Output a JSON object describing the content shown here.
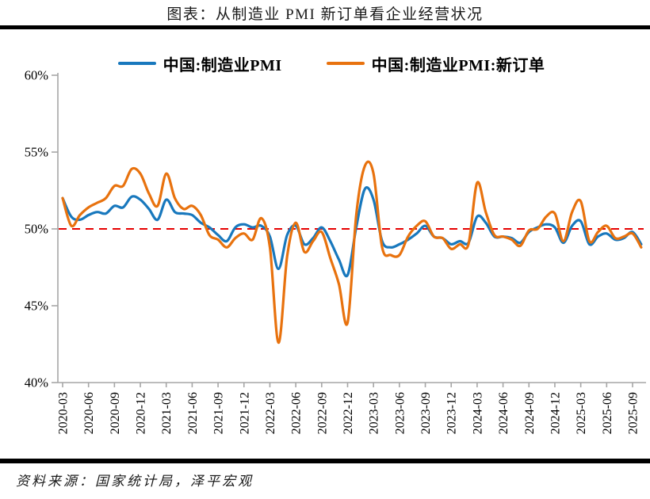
{
  "title": "图表：从制造业 PMI 新订单看企业经营状况",
  "source_note": "资料来源：国家统计局，泽平宏观",
  "legend": [
    {
      "label": "中国:制造业PMI",
      "color": "#1878bd"
    },
    {
      "label": "中国:制造业PMI:新订单",
      "color": "#e8720e"
    }
  ],
  "chart_data": {
    "type": "line",
    "title": "图表：从制造业 PMI 新订单看企业经营状况",
    "xlabel": "",
    "ylabel": "",
    "ylim": [
      40,
      60
    ],
    "grid": false,
    "legend_position": "top",
    "yticks": [
      {
        "value": 60,
        "label": "60%"
      },
      {
        "value": 55,
        "label": "55%"
      },
      {
        "value": 50,
        "label": "50%"
      },
      {
        "value": 45,
        "label": "45%"
      },
      {
        "value": 40,
        "label": "40%"
      }
    ],
    "xticks": [
      "2020-03",
      "2020-06",
      "2020-09",
      "2020-12",
      "2021-03",
      "2021-06",
      "2021-09",
      "2021-12",
      "2022-03",
      "2022-06",
      "2022-09",
      "2022-12",
      "2023-03",
      "2023-06",
      "2023-09",
      "2023-12",
      "2024-03",
      "2024-06",
      "2024-09",
      "2024-12",
      "2025-03",
      "2025-06",
      "2025-09"
    ],
    "reference_line": {
      "value": 50,
      "color": "#e60000",
      "style": "dashed"
    },
    "x": [
      "2020-03",
      "2020-04",
      "2020-05",
      "2020-06",
      "2020-07",
      "2020-08",
      "2020-09",
      "2020-10",
      "2020-11",
      "2020-12",
      "2021-01",
      "2021-02",
      "2021-03",
      "2021-04",
      "2021-05",
      "2021-06",
      "2021-07",
      "2021-08",
      "2021-09",
      "2021-10",
      "2021-11",
      "2021-12",
      "2022-01",
      "2022-02",
      "2022-03",
      "2022-04",
      "2022-05",
      "2022-06",
      "2022-07",
      "2022-08",
      "2022-09",
      "2022-10",
      "2022-11",
      "2022-12",
      "2023-01",
      "2023-02",
      "2023-03",
      "2023-04",
      "2023-05",
      "2023-06",
      "2023-07",
      "2023-08",
      "2023-09",
      "2023-10",
      "2023-11",
      "2023-12",
      "2024-01",
      "2024-02",
      "2024-03",
      "2024-04",
      "2024-05",
      "2024-06",
      "2024-07",
      "2024-08",
      "2024-09",
      "2024-10",
      "2024-11",
      "2024-12",
      "2025-01",
      "2025-02",
      "2025-03",
      "2025-04",
      "2025-05",
      "2025-06",
      "2025-07",
      "2025-08",
      "2025-09",
      "2025-10"
    ],
    "series": [
      {
        "name": "中国:制造业PMI",
        "color": "#1878bd",
        "values": [
          52.0,
          50.8,
          50.6,
          50.9,
          51.1,
          51.0,
          51.5,
          51.4,
          52.1,
          51.9,
          51.3,
          50.6,
          51.9,
          51.1,
          51.0,
          50.9,
          50.4,
          50.1,
          49.6,
          49.2,
          50.1,
          50.3,
          50.1,
          50.2,
          49.5,
          47.4,
          49.6,
          50.2,
          49.0,
          49.4,
          50.1,
          49.2,
          48.0,
          47.0,
          50.1,
          52.6,
          51.9,
          49.2,
          48.8,
          49.0,
          49.3,
          49.7,
          50.2,
          49.5,
          49.4,
          49.0,
          49.2,
          49.1,
          50.8,
          50.4,
          49.5,
          49.5,
          49.4,
          49.1,
          49.8,
          50.1,
          50.3,
          50.1,
          49.1,
          50.2,
          50.5,
          49.0,
          49.5,
          49.7,
          49.3,
          49.4,
          49.8,
          49.0
        ]
      },
      {
        "name": "中国:制造业PMI:新订单",
        "color": "#e8720e",
        "values": [
          52.0,
          50.2,
          50.9,
          51.4,
          51.7,
          52.0,
          52.8,
          52.8,
          53.9,
          53.6,
          52.3,
          51.5,
          53.6,
          52.0,
          51.3,
          51.5,
          50.9,
          49.6,
          49.3,
          48.8,
          49.4,
          49.7,
          49.3,
          50.7,
          48.8,
          42.6,
          48.2,
          50.4,
          48.5,
          49.2,
          49.8,
          48.1,
          46.4,
          43.9,
          50.9,
          54.1,
          53.6,
          48.8,
          48.3,
          48.3,
          49.5,
          50.2,
          50.5,
          49.5,
          49.4,
          48.7,
          49.0,
          49.0,
          53.0,
          51.1,
          49.6,
          49.5,
          49.3,
          48.9,
          49.9,
          50.0,
          50.8,
          51.0,
          49.2,
          51.1,
          51.8,
          49.2,
          49.8,
          50.2,
          49.4,
          49.5,
          49.7,
          48.8
        ]
      }
    ]
  }
}
